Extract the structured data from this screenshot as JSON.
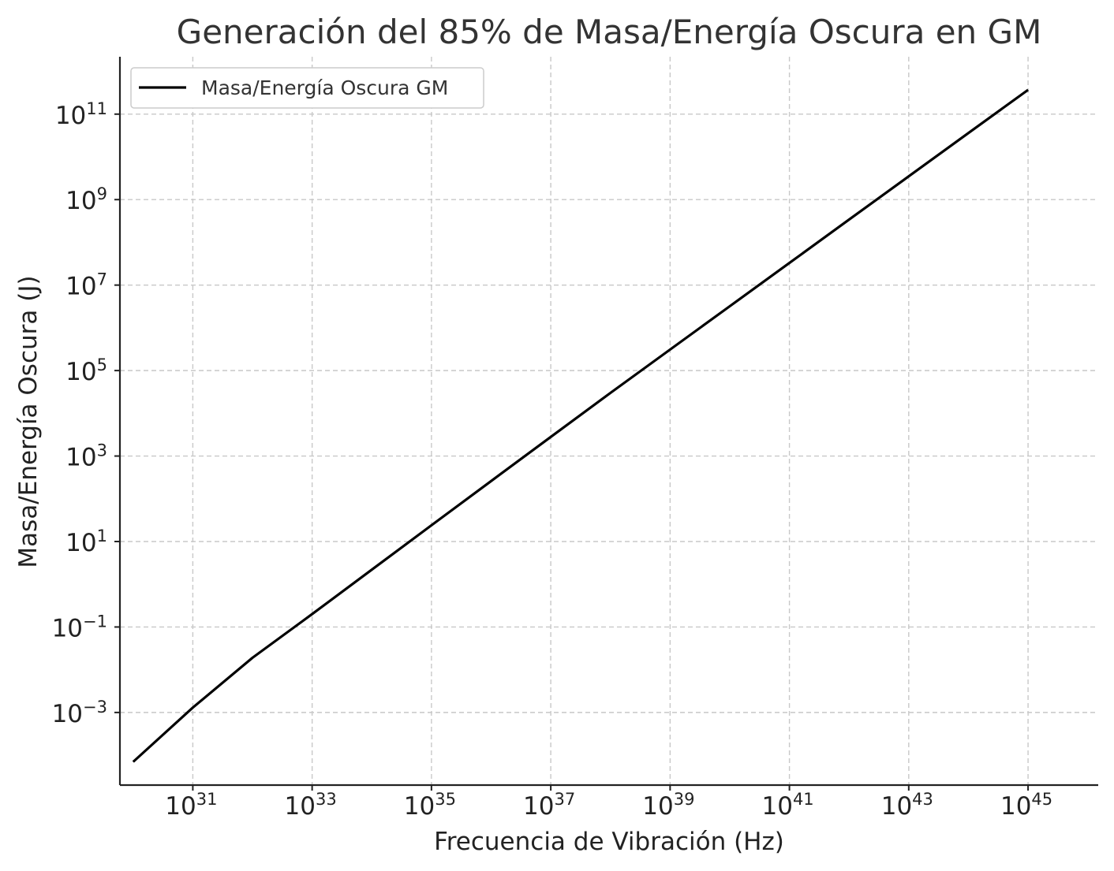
{
  "chart_data": {
    "type": "line",
    "title": "Generación del 85% de Masa/Energía Oscura en GM",
    "xlabel": "Frecuencia de Vibración (Hz)",
    "ylabel": "Masa/Energía Oscura (J)",
    "xscale": "log",
    "yscale": "log",
    "xlim": [
      6e+29,
      1.5e+46
    ],
    "ylim": [
      2e-05,
      2200000000000.0
    ],
    "grid": true,
    "legend_position": "top-left",
    "x_ticks": [
      {
        "base": "10",
        "exp": "31",
        "value": 1e+31
      },
      {
        "base": "10",
        "exp": "33",
        "value": 1e+33
      },
      {
        "base": "10",
        "exp": "35",
        "value": 1e+35
      },
      {
        "base": "10",
        "exp": "37",
        "value": 1e+37
      },
      {
        "base": "10",
        "exp": "39",
        "value": 1e+39
      },
      {
        "base": "10",
        "exp": "41",
        "value": 1e+41
      },
      {
        "base": "10",
        "exp": "43",
        "value": 1e+43
      },
      {
        "base": "10",
        "exp": "45",
        "value": 1e+45
      }
    ],
    "y_ticks": [
      {
        "base": "10",
        "exp": "−3",
        "value": 0.001
      },
      {
        "base": "10",
        "exp": "−1",
        "value": 0.1
      },
      {
        "base": "10",
        "exp": "1",
        "value": 10.0
      },
      {
        "base": "10",
        "exp": "3",
        "value": 1000.0
      },
      {
        "base": "10",
        "exp": "5",
        "value": 100000.0
      },
      {
        "base": "10",
        "exp": "7",
        "value": 10000000.0
      },
      {
        "base": "10",
        "exp": "9",
        "value": 1000000000.0
      },
      {
        "base": "10",
        "exp": "11",
        "value": 100000000000.0
      }
    ],
    "series": [
      {
        "name": "Masa/Energía Oscura GM",
        "color": "#000000",
        "x": [
          1e+30,
          1e+31,
          1e+32,
          1e+33,
          1e+34,
          1e+35,
          1e+36,
          1e+37,
          1e+38,
          1e+39,
          1e+40,
          1e+41,
          1e+42,
          1e+43,
          1e+44,
          1e+45
        ],
        "y": [
          7e-05,
          0.0013,
          0.019,
          0.2,
          2.2,
          24.0,
          260.0,
          2800.0,
          30000.0,
          310000.0,
          3200000.0,
          33000000.0,
          340000000.0,
          3500000000.0,
          36000000000.0,
          370000000000.0
        ]
      }
    ]
  }
}
